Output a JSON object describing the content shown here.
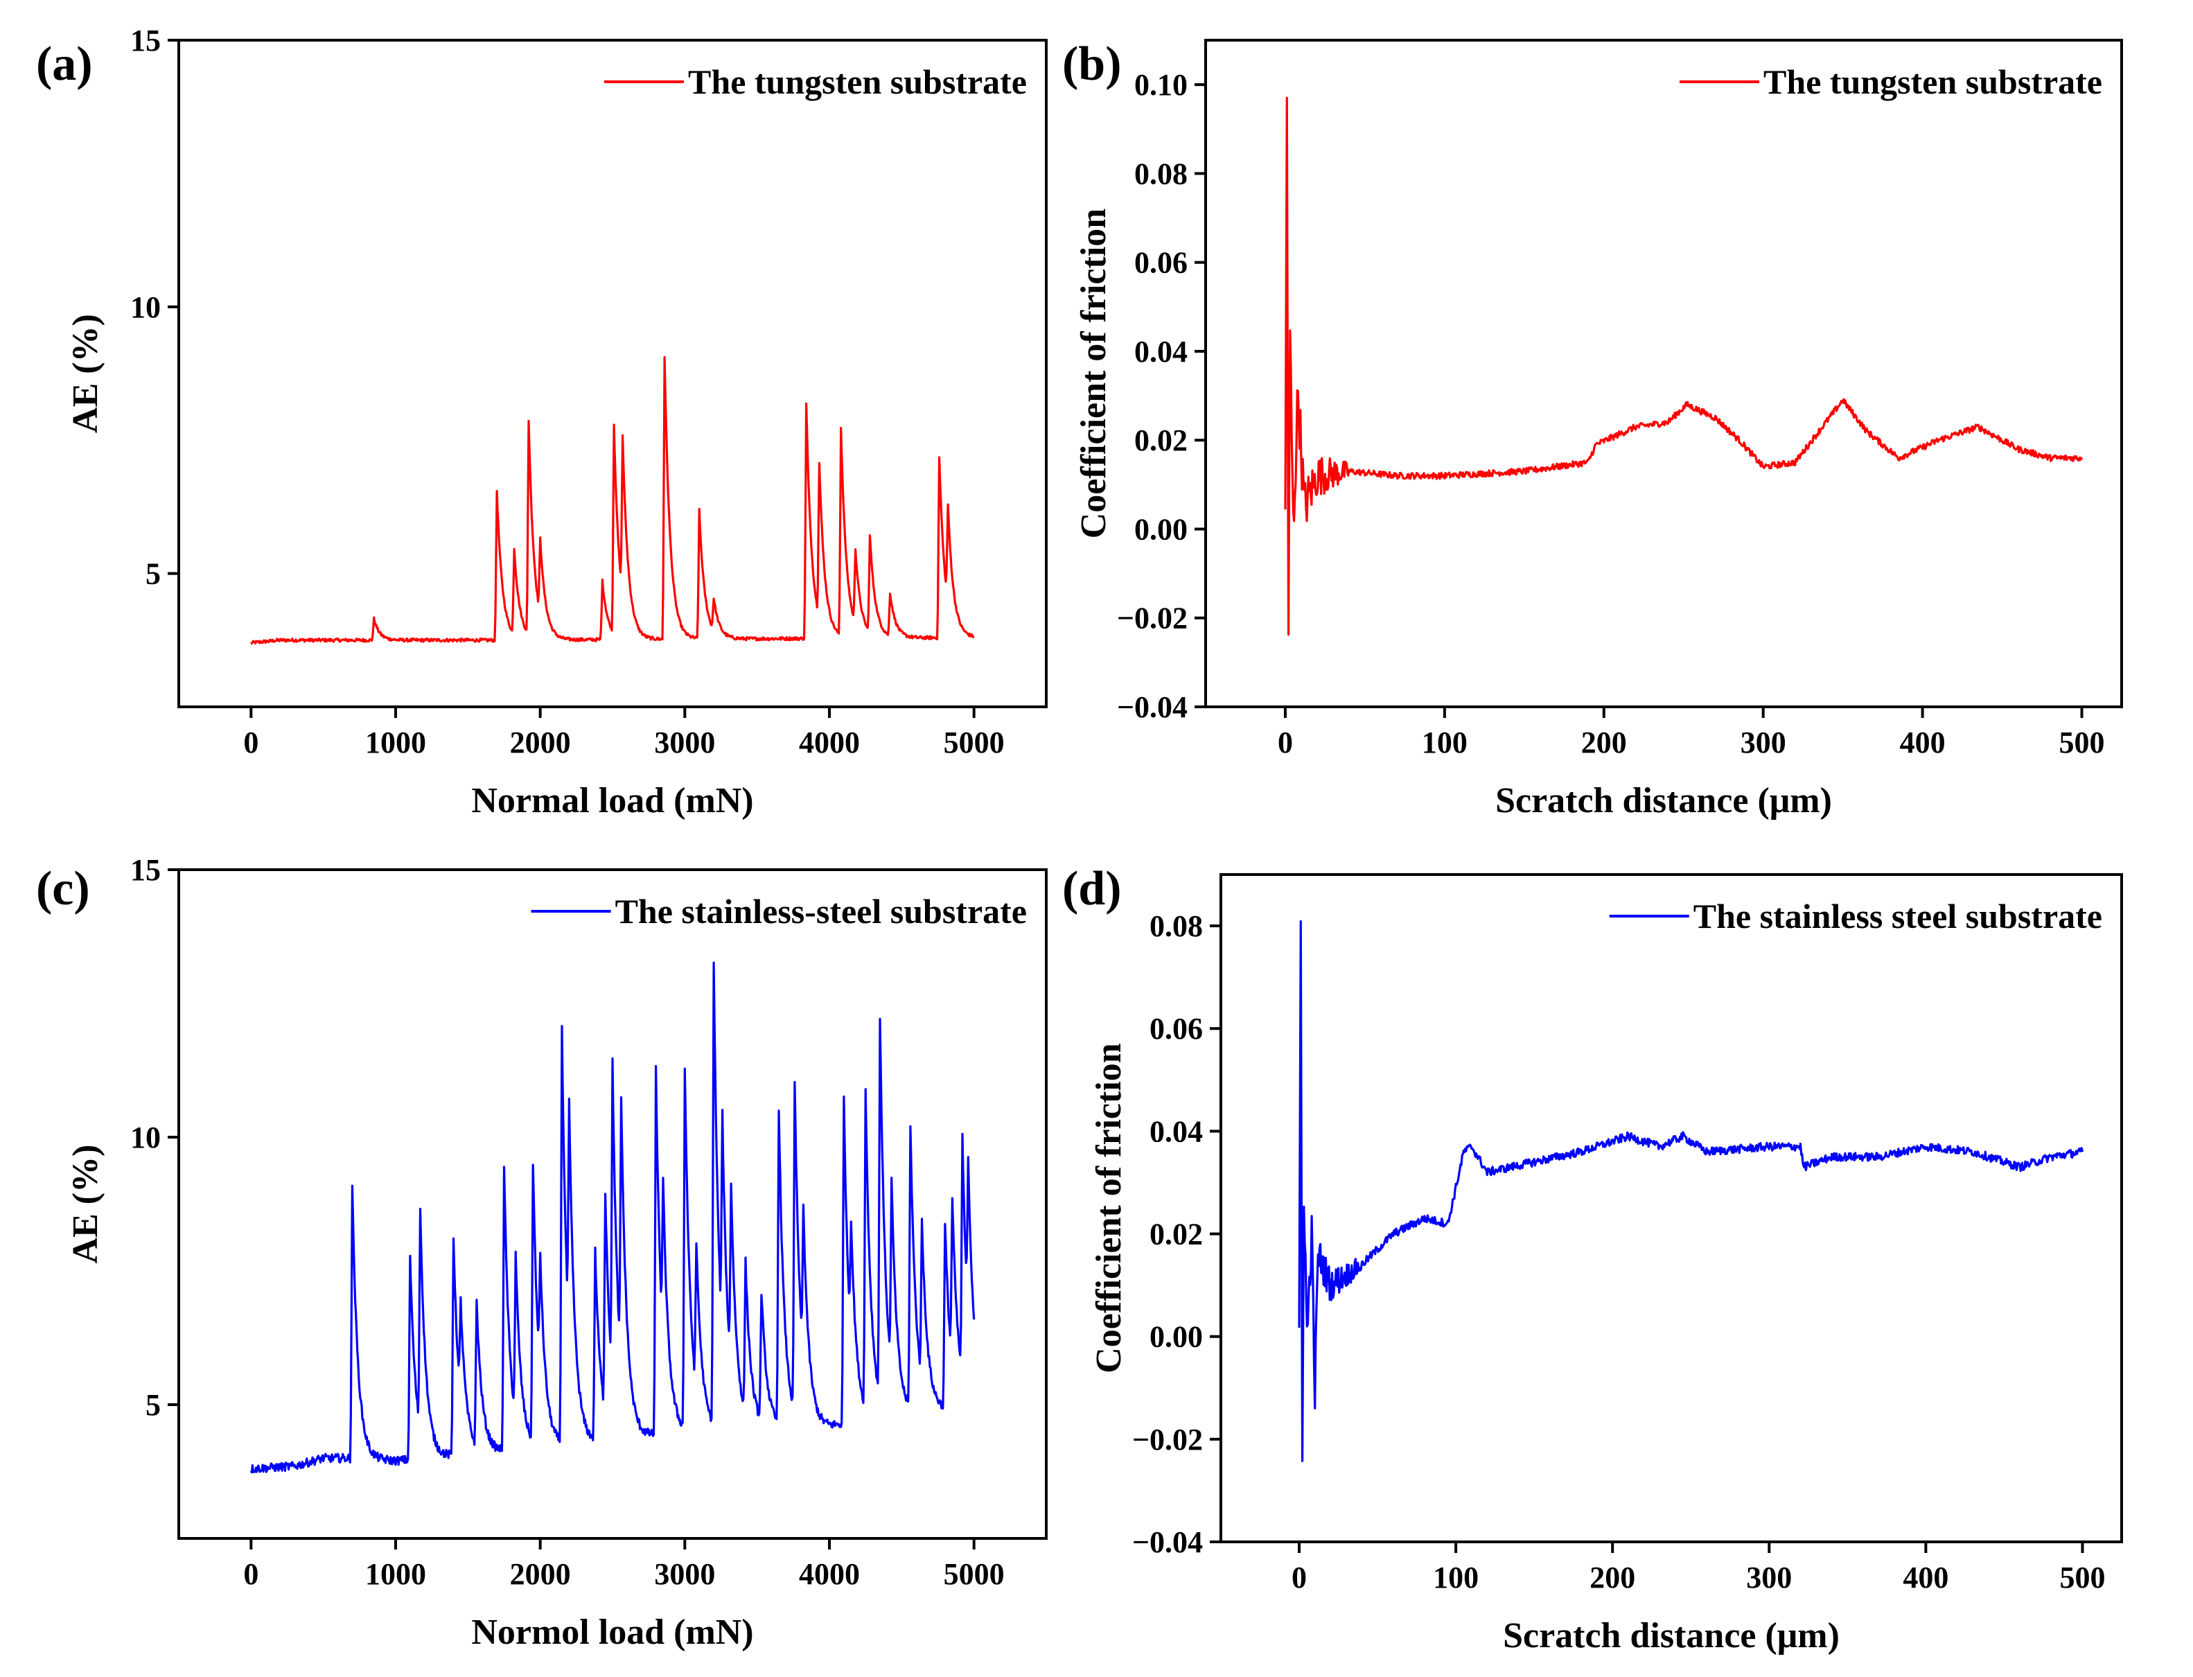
{
  "figure": {
    "panels": [
      {
        "id": "a",
        "label": "(a)"
      },
      {
        "id": "b",
        "label": "(b)"
      },
      {
        "id": "c",
        "label": "(c)"
      },
      {
        "id": "d",
        "label": "(d)"
      }
    ]
  },
  "chart_data": [
    {
      "id": "a",
      "panel_label": "(a)",
      "type": "line",
      "xlabel": "Normal load (mN)",
      "ylabel": "AE (%)",
      "xlim": [
        -500,
        5500
      ],
      "ylim": [
        2.5,
        15
      ],
      "xticks": [
        0,
        1000,
        2000,
        3000,
        4000,
        5000
      ],
      "yticks": [
        5,
        10,
        15
      ],
      "xtick_labels": [
        "0",
        "1000",
        "2000",
        "3000",
        "4000",
        "5000"
      ],
      "ytick_labels": [
        "5",
        "10",
        "15"
      ],
      "legend_position": "top-right",
      "series": [
        {
          "name": "The tungsten substrate",
          "color": "#ff0000",
          "baseline": [
            [
              0,
              3.7
            ],
            [
              200,
              3.75
            ],
            [
              1600,
              3.75
            ],
            [
              1700,
              3.75
            ],
            [
              5000,
              3.8
            ]
          ],
          "noise": 0.03,
          "spikes": [
            [
              850,
              0.4
            ],
            [
              1700,
              2.8
            ],
            [
              1820,
              1.6
            ],
            [
              1920,
              4.0
            ],
            [
              2000,
              1.4
            ],
            [
              2430,
              1.1
            ],
            [
              2510,
              3.9
            ],
            [
              2570,
              3.0
            ],
            [
              2860,
              5.3
            ],
            [
              3100,
              2.4
            ],
            [
              3200,
              0.6
            ],
            [
              3840,
              4.4
            ],
            [
              3930,
              2.9
            ],
            [
              4080,
              3.9
            ],
            [
              4180,
              1.4
            ],
            [
              4280,
              1.8
            ],
            [
              4420,
              0.8
            ],
            [
              4760,
              3.4
            ],
            [
              4820,
              1.8
            ]
          ],
          "peak_values": [
            {
              "x": 1920,
              "y": 7.8
            },
            {
              "x": 2860,
              "y": 9.1
            },
            {
              "x": 3840,
              "y": 8.2
            },
            {
              "x": 4760,
              "y": 7.1
            }
          ]
        }
      ]
    },
    {
      "id": "b",
      "panel_label": "(b)",
      "type": "line",
      "xlabel": "Scratch distance (μm)",
      "ylabel": "Coefficient of friction",
      "xlim": [
        -50,
        525
      ],
      "ylim": [
        -0.04,
        0.11
      ],
      "xticks": [
        0,
        100,
        200,
        300,
        400,
        500
      ],
      "yticks": [
        -0.04,
        -0.02,
        0.0,
        0.02,
        0.04,
        0.06,
        0.08,
        0.1
      ],
      "xtick_labels": [
        "0",
        "100",
        "200",
        "300",
        "400",
        "500"
      ],
      "ytick_labels": [
        "−0.04",
        "−0.02",
        "0.00",
        "0.02",
        "0.04",
        "0.06",
        "0.08",
        "0.10"
      ],
      "legend_position": "top-right",
      "series": [
        {
          "name": "The tungsten substrate",
          "color": "#ff0000",
          "anchors": [
            [
              0,
              0.0
            ],
            [
              1,
              0.096
            ],
            [
              2,
              -0.024
            ],
            [
              3,
              0.043
            ],
            [
              5,
              0.0
            ],
            [
              8,
              0.031
            ],
            [
              12,
              0.005
            ],
            [
              20,
              0.012
            ],
            [
              40,
              0.013
            ],
            [
              70,
              0.012
            ],
            [
              100,
              0.012
            ],
            [
              150,
              0.013
            ],
            [
              190,
              0.015
            ],
            [
              195,
              0.019
            ],
            [
              220,
              0.023
            ],
            [
              240,
              0.024
            ],
            [
              252,
              0.028
            ],
            [
              270,
              0.025
            ],
            [
              285,
              0.02
            ],
            [
              300,
              0.014
            ],
            [
              320,
              0.015
            ],
            [
              335,
              0.022
            ],
            [
              350,
              0.029
            ],
            [
              365,
              0.022
            ],
            [
              385,
              0.016
            ],
            [
              410,
              0.02
            ],
            [
              435,
              0.023
            ],
            [
              460,
              0.018
            ],
            [
              480,
              0.016
            ],
            [
              500,
              0.016
            ]
          ],
          "noise_early": 0.007,
          "noise_late": 0.0007
        }
      ]
    },
    {
      "id": "c",
      "panel_label": "(c)",
      "type": "line",
      "xlabel": "Normol load (mN)",
      "ylabel": "AE (%)",
      "xlim": [
        -500,
        5500
      ],
      "ylim": [
        2.5,
        15
      ],
      "xticks": [
        0,
        1000,
        2000,
        3000,
        4000,
        5000
      ],
      "yticks": [
        5,
        10,
        15
      ],
      "xtick_labels": [
        "0",
        "1000",
        "2000",
        "3000",
        "4000",
        "5000"
      ],
      "ytick_labels": [
        "5",
        "10",
        "15"
      ],
      "legend_position": "top-right",
      "series": [
        {
          "name": "The stainless-steel substrate",
          "color": "#0000ff",
          "baseline": [
            [
              0,
              3.8
            ],
            [
              300,
              3.85
            ],
            [
              500,
              4.0
            ],
            [
              690,
              4.0
            ],
            [
              700,
              4.0
            ],
            [
              1000,
              3.95
            ],
            [
              2000,
              4.2
            ],
            [
              3000,
              4.5
            ],
            [
              4000,
              4.6
            ],
            [
              5000,
              5.0
            ]
          ],
          "noise": 0.08,
          "spikes": [
            [
              700,
              5.1
            ],
            [
              1100,
              3.8
            ],
            [
              1170,
              4.1
            ],
            [
              1400,
              4.1
            ],
            [
              1450,
              1.8
            ],
            [
              1560,
              2.7
            ],
            [
              1750,
              5.3
            ],
            [
              1830,
              3.0
            ],
            [
              1950,
              5.2
            ],
            [
              2000,
              2.2
            ],
            [
              2150,
              7.7
            ],
            [
              2200,
              4.3
            ],
            [
              2380,
              3.5
            ],
            [
              2450,
              4.1
            ],
            [
              2500,
              5.8
            ],
            [
              2560,
              4.9
            ],
            [
              2800,
              6.8
            ],
            [
              2850,
              2.9
            ],
            [
              3000,
              6.7
            ],
            [
              3080,
              2.7
            ],
            [
              3200,
              8.6
            ],
            [
              3260,
              4.1
            ],
            [
              3320,
              3.4
            ],
            [
              3420,
              2.8
            ],
            [
              3530,
              2.4
            ],
            [
              3650,
              5.9
            ],
            [
              3760,
              6.1
            ],
            [
              3820,
              2.8
            ],
            [
              4100,
              6.1
            ],
            [
              4150,
              2.2
            ],
            [
              4250,
              5.9
            ],
            [
              4350,
              7.1
            ],
            [
              4430,
              3.5
            ],
            [
              4560,
              5.3
            ],
            [
              4640,
              2.9
            ],
            [
              4800,
              3.4
            ],
            [
              4850,
              3.0
            ],
            [
              4920,
              4.4
            ],
            [
              4960,
              2.9
            ]
          ],
          "peak_values": [
            {
              "x": 700,
              "y": 9.1
            },
            {
              "x": 2150,
              "y": 11.9
            },
            {
              "x": 3200,
              "y": 13.1
            },
            {
              "x": 4350,
              "y": 11.7
            }
          ]
        }
      ]
    },
    {
      "id": "d",
      "panel_label": "(d)",
      "type": "line",
      "xlabel": "Scratch distance (μm)",
      "ylabel": "Coefficient of  friction",
      "xlim": [
        -50,
        525
      ],
      "ylim": [
        -0.04,
        0.09
      ],
      "xticks": [
        0,
        100,
        200,
        300,
        400,
        500
      ],
      "yticks": [
        -0.04,
        -0.02,
        0.0,
        0.02,
        0.04,
        0.06,
        0.08
      ],
      "xtick_labels": [
        "0",
        "100",
        "200",
        "300",
        "400",
        "500"
      ],
      "ytick_labels": [
        "−0.04",
        "−0.02",
        "0.00",
        "0.02",
        "0.04",
        "0.06",
        "0.08"
      ],
      "legend_position": "top-right",
      "series": [
        {
          "name": "The stainless steel substrate",
          "color": "#0000ff",
          "anchors": [
            [
              0,
              0.0
            ],
            [
              1,
              0.077
            ],
            [
              2,
              -0.025
            ],
            [
              3,
              0.029
            ],
            [
              5,
              0.0
            ],
            [
              8,
              0.02
            ],
            [
              10,
              -0.011
            ],
            [
              12,
              0.016
            ],
            [
              20,
              0.01
            ],
            [
              40,
              0.014
            ],
            [
              60,
              0.02
            ],
            [
              80,
              0.023
            ],
            [
              95,
              0.022
            ],
            [
              105,
              0.036
            ],
            [
              110,
              0.037
            ],
            [
              120,
              0.032
            ],
            [
              150,
              0.034
            ],
            [
              180,
              0.036
            ],
            [
              210,
              0.039
            ],
            [
              230,
              0.037
            ],
            [
              245,
              0.039
            ],
            [
              260,
              0.036
            ],
            [
              300,
              0.037
            ],
            [
              320,
              0.037
            ],
            [
              322,
              0.033
            ],
            [
              340,
              0.035
            ],
            [
              370,
              0.035
            ],
            [
              400,
              0.037
            ],
            [
              430,
              0.036
            ],
            [
              460,
              0.033
            ],
            [
              480,
              0.035
            ],
            [
              500,
              0.036
            ]
          ],
          "noise_early": 0.004,
          "noise_late": 0.0008
        }
      ]
    }
  ]
}
